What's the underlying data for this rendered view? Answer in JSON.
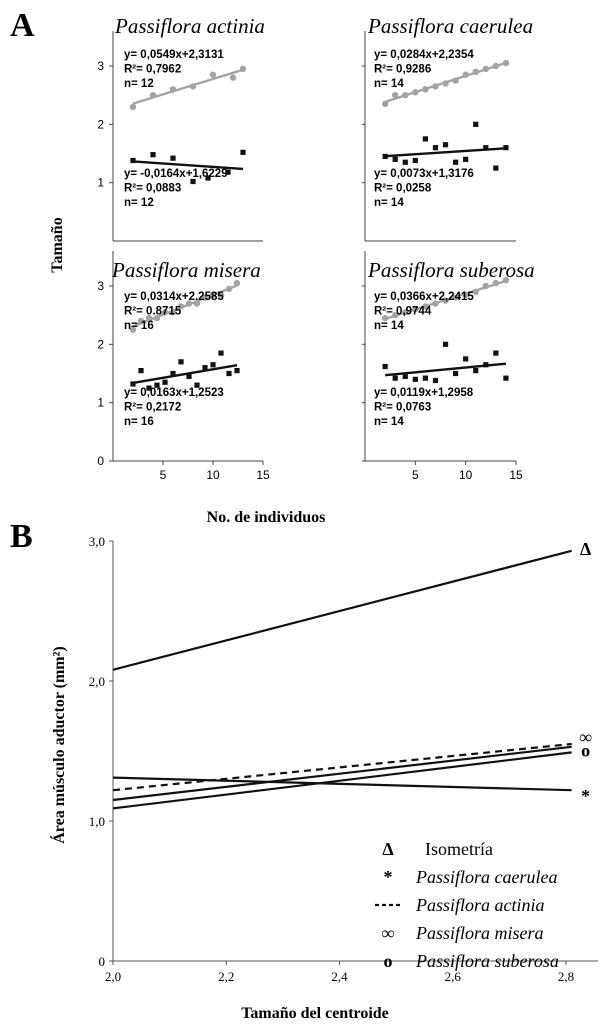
{
  "panel_a_letter": "A",
  "panel_b_letter": "B",
  "chart_data": [
    {
      "type": "scatter",
      "panel": "A",
      "ylabel": "Tamaño",
      "xlabel": "No. de individuos",
      "xlim": [
        0,
        15
      ],
      "ylim": [
        0,
        3.6
      ],
      "xticks": [
        "5",
        "10",
        "15"
      ],
      "yticks": [
        "0",
        "1",
        "2",
        "3"
      ],
      "facets": [
        {
          "title": "Passiflora actinia",
          "series": [
            {
              "color": "#a3a3a3",
              "marker": "circle",
              "x": [
                2,
                4,
                6,
                8,
                10,
                12,
                13
              ],
              "y": [
                2.3,
                2.5,
                2.6,
                2.65,
                2.85,
                2.8,
                2.95
              ],
              "fit": {
                "slope": 0.0549,
                "intercept": 2.3131
              },
              "labels": [
                "y= 0,0549x+2,3131",
                "R²= 0,7962",
                "n= 12"
              ]
            },
            {
              "color": "#111111",
              "marker": "square",
              "x": [
                2,
                4,
                6,
                8,
                9.5,
                11.5,
                13
              ],
              "y": [
                1.38,
                1.48,
                1.42,
                1.02,
                1.08,
                1.18,
                1.52
              ],
              "fit": {
                "slope": -0.0164,
                "intercept": 1.6229
              },
              "labels": [
                "y= -0,0164x+1,6229",
                "R²= 0,0883",
                "n= 12"
              ]
            }
          ]
        },
        {
          "title": "Passiflora caerulea",
          "series": [
            {
              "color": "#a3a3a3",
              "marker": "circle",
              "x": [
                2,
                3,
                4,
                5,
                6,
                7,
                8,
                9,
                10,
                11,
                12,
                13,
                14
              ],
              "y": [
                2.35,
                2.5,
                2.5,
                2.55,
                2.6,
                2.65,
                2.7,
                2.75,
                2.85,
                2.9,
                2.95,
                3.0,
                3.05
              ],
              "fit": {
                "slope": 0.0284,
                "intercept": 2.2354
              },
              "labels": [
                "y= 0,0284x+2,2354",
                "R²= 0,9286",
                "n= 14"
              ]
            },
            {
              "color": "#111111",
              "marker": "square",
              "x": [
                2,
                3,
                4,
                5,
                6,
                7,
                8,
                9,
                10,
                11,
                12,
                13,
                14
              ],
              "y": [
                1.45,
                1.4,
                1.35,
                1.38,
                1.75,
                1.6,
                1.65,
                1.35,
                1.4,
                2.0,
                1.6,
                1.25,
                1.6
              ],
              "fit": {
                "slope": 0.0073,
                "intercept": 1.3176
              },
              "labels": [
                "y= 0,0073x+1,3176",
                "R²= 0,0258",
                "n= 14"
              ]
            }
          ]
        },
        {
          "title": "Passiflora misera",
          "series": [
            {
              "color": "#a3a3a3",
              "marker": "circle",
              "x": [
                2,
                2.8,
                3.6,
                4.4,
                5.2,
                6,
                6.8,
                7.6,
                8.4,
                9.2,
                10,
                10.8,
                11.6,
                12.4
              ],
              "y": [
                2.25,
                2.4,
                2.45,
                2.45,
                2.55,
                2.55,
                2.65,
                2.7,
                2.7,
                2.8,
                2.85,
                2.85,
                2.95,
                3.05
              ],
              "fit": {
                "slope": 0.0314,
                "intercept": 2.2585
              },
              "labels": [
                "y= 0,0314x+2.2585",
                "R²= 0.8715",
                "n= 16"
              ]
            },
            {
              "color": "#111111",
              "marker": "square",
              "x": [
                2,
                2.8,
                3.6,
                4.4,
                5.2,
                6,
                6.8,
                7.6,
                8.4,
                9.2,
                10,
                10.8,
                11.6,
                12.4
              ],
              "y": [
                1.32,
                1.55,
                1.25,
                1.3,
                1.35,
                1.5,
                1.7,
                1.45,
                1.3,
                1.6,
                1.65,
                1.85,
                1.5,
                1.55
              ],
              "fit": {
                "slope": 0.0163,
                "intercept": 1.2523
              },
              "labels": [
                "y= 0,0163x+1,2523",
                "R²= 0,2172",
                "n= 16"
              ]
            }
          ]
        },
        {
          "title": "Passiflora suberosa",
          "series": [
            {
              "color": "#a3a3a3",
              "marker": "circle",
              "x": [
                2,
                3,
                4,
                5,
                6,
                7,
                8,
                9,
                10,
                11,
                12,
                13,
                14
              ],
              "y": [
                2.45,
                2.5,
                2.55,
                2.6,
                2.65,
                2.7,
                2.75,
                2.8,
                2.85,
                2.9,
                3.0,
                3.05,
                3.1
              ],
              "fit": {
                "slope": 0.0366,
                "intercept": 2.2415
              },
              "labels": [
                "y= 0,0366x+2,2415",
                "R²= 0,9744",
                "n= 14"
              ]
            },
            {
              "color": "#111111",
              "marker": "square",
              "x": [
                2,
                3,
                4,
                5,
                6,
                7,
                8,
                9,
                10,
                11,
                12,
                13,
                14
              ],
              "y": [
                1.62,
                1.42,
                1.45,
                1.4,
                1.42,
                1.38,
                2.0,
                1.5,
                1.75,
                1.55,
                1.65,
                1.85,
                1.42
              ],
              "fit": {
                "slope": 0.0119,
                "intercept": 1.2958
              },
              "labels": [
                "y= 0,0119x+1,2958",
                "R²= 0,0763",
                "n= 14"
              ]
            }
          ]
        }
      ]
    },
    {
      "type": "line",
      "panel": "B",
      "xlabel": "Tamaño del centroide",
      "ylabel": "Área músculo aductor (mm²)",
      "xlim": [
        2.0,
        2.8
      ],
      "ylim": [
        0,
        3.0
      ],
      "xticks": [
        "2,0",
        "2,2",
        "2,4",
        "2,6",
        "2,8"
      ],
      "yticks": [
        "0",
        "1,0",
        "2,0",
        "3,0"
      ],
      "series": [
        {
          "name": "Isometría",
          "style": "solid",
          "marker": "Δ",
          "x": [
            2.0,
            2.81
          ],
          "y": [
            2.08,
            2.93
          ]
        },
        {
          "name": "Passiflora caerulea",
          "style": "solid",
          "marker": "*",
          "x": [
            2.0,
            2.81
          ],
          "y": [
            1.31,
            1.22
          ]
        },
        {
          "name": "Passiflora actinia",
          "style": "dashed",
          "marker": "",
          "x": [
            2.0,
            2.81
          ],
          "y": [
            1.22,
            1.55
          ]
        },
        {
          "name": "Passiflora misera",
          "style": "solid",
          "marker": "∞",
          "x": [
            2.0,
            2.81
          ],
          "y": [
            1.15,
            1.53
          ]
        },
        {
          "name": "Passiflora suberosa",
          "style": "solid",
          "marker": "o",
          "x": [
            2.0,
            2.81
          ],
          "y": [
            1.09,
            1.49
          ]
        }
      ],
      "legend_position": "bottom-right"
    }
  ]
}
